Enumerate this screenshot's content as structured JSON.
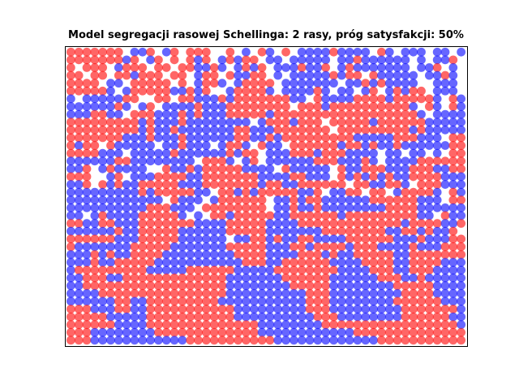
{
  "chart_data": {
    "type": "scatter",
    "title": "Model segregacji rasowej Schellinga: 2 rasy, próg satysfakcji: 50%",
    "xlabel": "",
    "ylabel": "",
    "xlim": [
      0,
      50
    ],
    "ylim": [
      0,
      50
    ],
    "axis_ticks": "hidden",
    "grid": false,
    "colors": {
      "red_group": "#ff0000",
      "blue_group": "#0000ff",
      "marker_alpha": 0.6
    },
    "legend": "none",
    "grid_rows_top_to_bottom": [
      "RRRRRRR.BBR.BR.RRR..R.B.RB.R.BBBBRBBBB.RB.BBB.BB.B",
      "RRRRRRRBR.BR.R.RBR.BRBRR.BB.BBBBB.BBRBBBBBB.B.BBR",
      "R.RRR.BRRR.RR.RRBBRB.BRBR.BBBRBBR.BRBBBBBBB.BBR.B",
      "RR.RR.RRBRRR.RR.BRR.RBBRR.B.BBBBBRBRR.RBBBBB.BBRB",
      "RRRR.BB.RRRRR.R.BRRB.BRRRR.BBBBBBB.BBRBRBBBB..BBB",
      "RRRRRB.BRRRRRBBRBR..BRRRRB.BBBBRB.BB.BR.BRBRR.BBB",
      "B.BBBBBRR..RR.RRBBBRBRRRRRRRBB.RBBBBRRRRBRRRRRB.RB",
      "BBBBBBRB.BR.BBBBRBBBRRRRRRRR.RRRBRRRRRRRRRRB.RB.RB",
      "BBBRRBB.RRRBBBRBRBBBRRRRRBRRRRRRRRRRRRRRRRRRB.BBBB",
      "RRRRRRRRRBRBBBRBBBBBBBB.BRRRBRRR.RRRRRBRRRRRRBBBBB",
      "RRRRRRRRRBRBBRBBBBBBBRRBBBRRRRRRR.RRRRRRRRRBRBBBBB",
      "RRRRRRRBBBRBBBRBBBBBBRRBBRBRRRRRRRRRBBBBBRRRBBB.RR",
      "RBRR.RBBBBB.BBRBBB.BRRB.RBB.RRRRRRBRRBRBBRBBBBBBRR",
      "RRRRBBB.BBBBBRBBBBBBRBRR.BBBRRRBRRRBBBB.BB.BB.B.RR",
      "BBBBBBRRBBBBBBBB.RRRB.BR.BBBBBBRRRBBBRB.BBBBRRRRRR",
      "BBR.BRBBBB..RBBRBRRRRRBBBB.RBBBBB.RBBRRRBBBRRRBBRR",
      "RRR..BR.BBBRRRRBBRRRRRRRBBBBRRBBB.RBRBRBRBBRRRRBBB",
      "BBR.RBRBBRRRRRBBBRRRRRRRBRRBBRRRRRR.RRBBRRB.RRRBBB",
      "BBBBBBBBBRBRRRRRBB.RRBRBRRRRRBBR.BBRR.RR.BRRRRB.RB",
      "BBBBBBBBBBBB.RBBB.BRRRRRR.BBRBRRBBBBBBRRRRRRBBB.RR",
      "BBBBBBBBBBRRRBBB.RRRRRRRR.BBRBBRBBBBBBBBRRRRBBBBBB",
      "BB.BRBBBBRRRRRB.B.RRBRRRRRBBRRRRRRBRRRRRRRRRBB.RBB",
      "RRBBRRBBBRRRRRRRBBBBRRRRRBBBBRRRRRRRRRRRRRBRRRRBBR",
      "BBBBBBRBBRRRRRBBBBBBRRRRRBBBBBBBRRRRRRRRBBRRBRBBR.",
      "RRRRRRBBBRRRRRBBBBBB.BBRRBRBBRRBBBBRRRRRRBBBRBBBRR",
      "RBBBBBBBRRRRRBBBBBBBRRRRRBBBRRBRRRRBRRRBBBBRBBBRRR",
      "BBBRBRBBRRRRBBBBBBBBBRRRRBBBBRRRBRBBRRRRRBBRRRRRRR",
      "BBBRBBRRRRRBBBBBBBBBBBRRRBBRRRRRRBBBBRRRRBBRRRRBBB",
      "BRRRRRRRRRBBBBBRRRRRRBBBBBRRRRRRRRBBBBRRRBBRRRBBBB",
      "BBRRRBBRRRRRRRRRRRRRBBBBBBBRRRRRRBBBBBBRRRBBRBBBBB",
      "BBRRRRRRRRRRRRRRRRRRBBBBBBBBRRRRRBBBBBBBBRRRRRBBBB",
      "BBBBRRRRRRRRRRRRRRRRBBBBBBBBBBRRRBBBBBBBBBRRRRBBBB",
      "BBBBBBRRBBRRRRRRRRRBBBBBBBBBBBRRRBBBBBBBBRRRRRRBBB",
      "RRRBBBRRBBRRRRRRRRRRRBBBBBBBBBRRRBBBBBBBBBRRRRRRRB",
      "RRRRRBBBBBRRRRRRRRRRRBBBBBBBBBBRRRBBBBBBBBRRRRRRBB",
      "RRRRRRBBBBRRRRRRRRRRRRRRBBBBBBBBRRRRRRRRRRRRRRRRRB",
      "RRRBBBBBBBBRRRRRRRRRRRRRBBBBBBBBBBBBRRRRRRRRRRRRRR",
      "RRRBBBBBBBBBBBBRRRRRRRRRRRBBBBBBBBBBBBBRRRRRRRRRRR"
    ]
  }
}
